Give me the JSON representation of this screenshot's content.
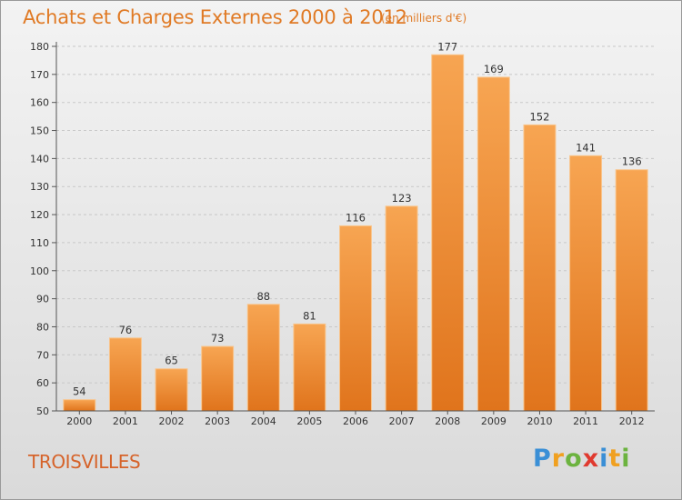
{
  "header": {
    "title": "Achats et Charges Externes 2000 à 2012",
    "unit": "(en milliers d'€)"
  },
  "footer": {
    "commune": "TROISVILLES",
    "logo_letters": [
      "P",
      "r",
      "o",
      "x",
      "i",
      "t",
      "i"
    ],
    "logo_colors": [
      "#3a8fd6",
      "#f0a020",
      "#6cb33f",
      "#e03a2f",
      "#3a8fd6",
      "#f0a020",
      "#6cb33f"
    ]
  },
  "colors": {
    "bar_light": "#f7a552",
    "bar_dark": "#e0741c",
    "bar_edge": "#f9c48a",
    "grid": "#c8c8c8",
    "axis": "#555555",
    "title": "#e07a25"
  },
  "chart_data": {
    "type": "bar",
    "categories": [
      "2000",
      "2001",
      "2002",
      "2003",
      "2004",
      "2005",
      "2006",
      "2007",
      "2008",
      "2009",
      "2010",
      "2011",
      "2012"
    ],
    "values": [
      54,
      76,
      65,
      73,
      88,
      81,
      116,
      123,
      177,
      169,
      152,
      141,
      136
    ],
    "ylim": [
      50,
      180
    ],
    "yticks": [
      50,
      60,
      70,
      80,
      90,
      100,
      110,
      120,
      130,
      140,
      150,
      160,
      170,
      180
    ],
    "grid": true,
    "data_labels": true
  }
}
